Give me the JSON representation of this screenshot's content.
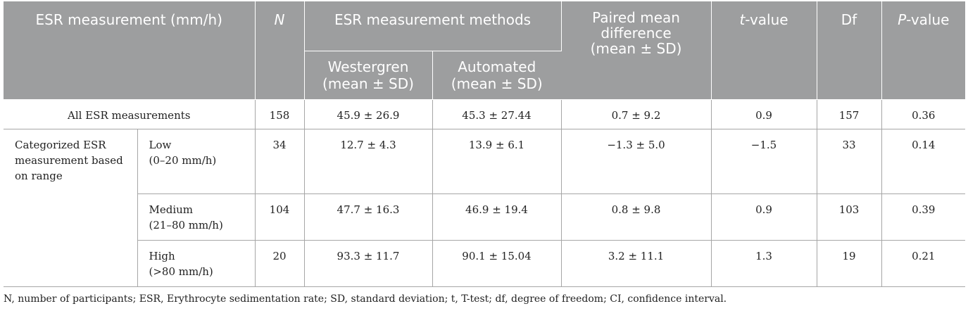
{
  "header": {
    "col1": "ESR measurement (mm/h)",
    "n": "N",
    "methods": "ESR measurement methods",
    "westergren_1": "Westergren",
    "westergren_2": "(mean ± SD)",
    "automated_1": "Automated",
    "automated_2": "(mean ± SD)",
    "paired_1": "Paired mean",
    "paired_2": "difference",
    "paired_3": "(mean ± SD)",
    "t_italic": "t",
    "t_rest": "-value",
    "df": "Df",
    "p_italic": "P",
    "p_rest": "-value"
  },
  "rows": {
    "all": {
      "label": "All ESR measurements",
      "n": "158",
      "westergren": "45.9 ± 26.9",
      "automated": "45.3 ± 27.44",
      "diff": "0.7 ± 9.2",
      "t": "0.9",
      "df": "157",
      "p": "0.36"
    },
    "category_label_1": "Categorized ESR",
    "category_label_2": "measurement based",
    "category_label_3": "on range",
    "low": {
      "label_1": "Low",
      "label_2": "(0–20 mm/h)",
      "n": "34",
      "westergren": "12.7 ± 4.3",
      "automated": "13.9 ± 6.1",
      "diff": "−1.3 ± 5.0",
      "t": "−1.5",
      "df": "33",
      "p": "0.14"
    },
    "medium": {
      "label_1": "Medium",
      "label_2": "(21–80 mm/h)",
      "n": "104",
      "westergren": "47.7 ± 16.3",
      "automated": "46.9 ± 19.4",
      "diff": "0.8 ± 9.8",
      "t": "0.9",
      "df": "103",
      "p": "0.39"
    },
    "high": {
      "label_1": "High",
      "label_2": "(>80 mm/h)",
      "n": "20",
      "westergren": "93.3 ± 11.7",
      "automated": "90.1 ± 15.04",
      "diff": "3.2 ± 11.1",
      "t": "1.3",
      "df": "19",
      "p": "0.21"
    }
  },
  "footnote": "N, number of participants; ESR, Erythrocyte sedimentation rate; SD, standard deviation; t, T-test; df, degree of freedom; CI, confidence interval."
}
